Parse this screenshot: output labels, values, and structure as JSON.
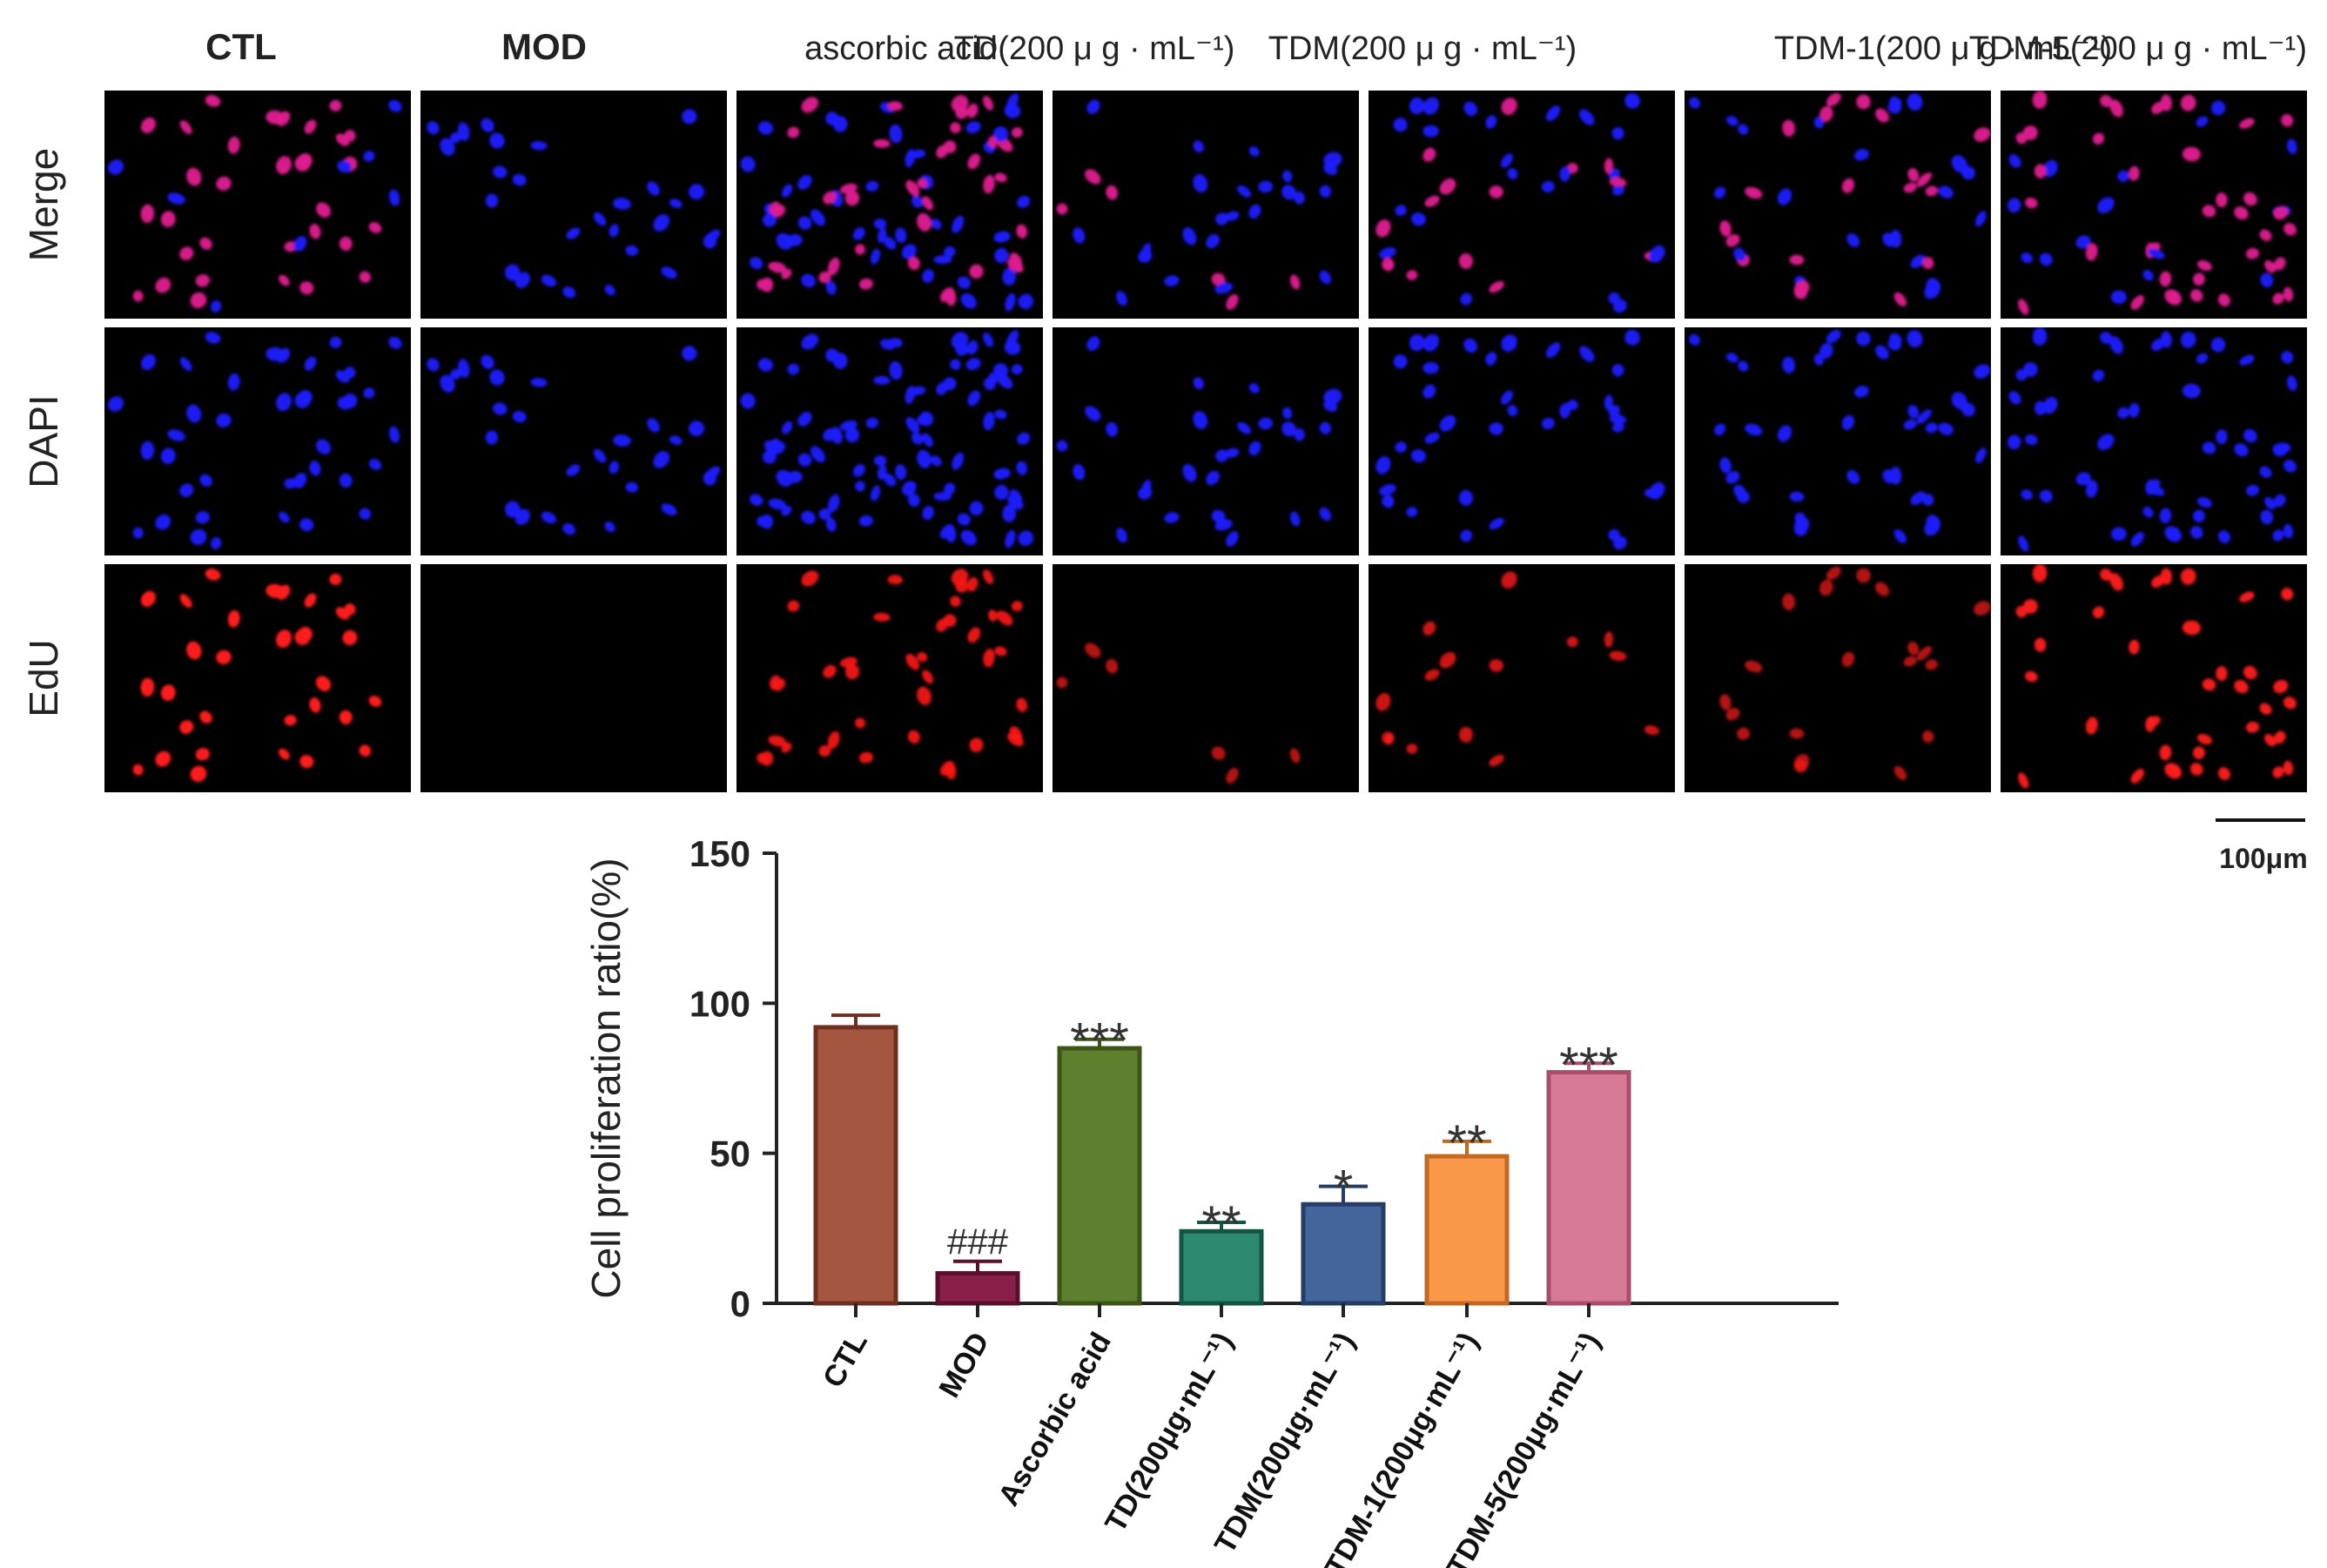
{
  "micrograph_panel": {
    "column_labels": [
      "CTL",
      "MOD",
      "ascorbic acid",
      "TD(200 μ g · mL⁻¹)",
      "TDM(200 μ g · mL⁻¹)",
      "TDM-1(200 μ g · mL⁻¹)",
      "TDM-5(200 μ g · mL⁻¹)"
    ],
    "row_labels": [
      "Merge",
      "DAPI",
      "EdU"
    ],
    "scale_bar_label": "100μm",
    "colors": {
      "dapi": "#1a1aff",
      "edu": "#ff1a1a",
      "merge": "#e0208f",
      "background": "#000000"
    }
  },
  "chart_data": {
    "type": "bar",
    "categories": [
      "CTL",
      "MOD",
      "Ascorbic acid",
      "TD(200μg·mL⁻¹)",
      "TDM(200μg·mL⁻¹)",
      "TDM-1(200μg·mL⁻¹)",
      "TDM-5(200μg·mL⁻¹)"
    ],
    "values": [
      92,
      10,
      85,
      24,
      33,
      49,
      77
    ],
    "errors": [
      4,
      4,
      3,
      3,
      6,
      5,
      3
    ],
    "significance": [
      "",
      "###",
      "***",
      "**",
      "*",
      "**",
      "***"
    ],
    "colors": [
      "#a45640",
      "#8a1f4a",
      "#5d7f2e",
      "#2e8a6e",
      "#44649c",
      "#f89848",
      "#d67a96"
    ],
    "edge_colors": [
      "#6e2f1e",
      "#5a0f2d",
      "#3b5418",
      "#145442",
      "#243e66",
      "#c06a22",
      "#a84e6c"
    ],
    "ylabel": "Cell proliferation ratio(%)",
    "ylim": [
      0,
      150
    ],
    "yticks": [
      0,
      50,
      100,
      150
    ]
  }
}
